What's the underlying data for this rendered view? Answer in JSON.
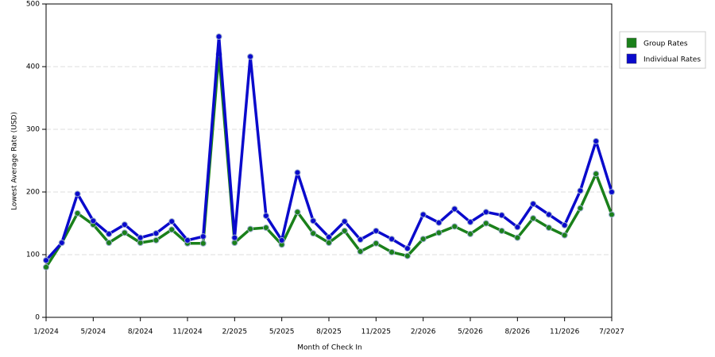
{
  "chart_data": {
    "type": "line",
    "x_label": "Month of Check In",
    "y_label": "Lowest Average Rate (USD)",
    "categories": [
      "1/2024",
      null,
      null,
      "5/2024",
      null,
      null,
      "8/2024",
      null,
      null,
      "11/2024",
      null,
      null,
      "2/2025",
      null,
      null,
      "5/2025",
      null,
      null,
      "8/2025",
      null,
      null,
      "11/2025",
      null,
      null,
      "2/2026",
      null,
      null,
      "5/2026",
      null,
      null,
      "8/2026",
      null,
      null,
      "11/2026",
      null,
      null,
      "7/2027"
    ],
    "series": [
      {
        "name": "Group Rates",
        "color": "#1a801a",
        "values": [
          80,
          119,
          166,
          148,
          119,
          135,
          119,
          123,
          140,
          118,
          118,
          420,
          119,
          141,
          143,
          116,
          168,
          134,
          119,
          138,
          105,
          118,
          104,
          98,
          125,
          135,
          145,
          133,
          150,
          138,
          127,
          158,
          143,
          131,
          174,
          229,
          164
        ]
      },
      {
        "name": "Individual Rates",
        "color": "#0a0acc",
        "values": [
          91,
          119,
          197,
          154,
          133,
          148,
          127,
          134,
          153,
          123,
          129,
          448,
          127,
          416,
          162,
          123,
          231,
          154,
          128,
          153,
          124,
          138,
          125,
          110,
          164,
          151,
          173,
          152,
          168,
          163,
          144,
          181,
          164,
          147,
          202,
          281,
          200
        ]
      }
    ],
    "ylim": [
      0,
      500
    ],
    "yticks": [
      0,
      100,
      200,
      300,
      400,
      500
    ],
    "grid": true,
    "legend": "right"
  }
}
